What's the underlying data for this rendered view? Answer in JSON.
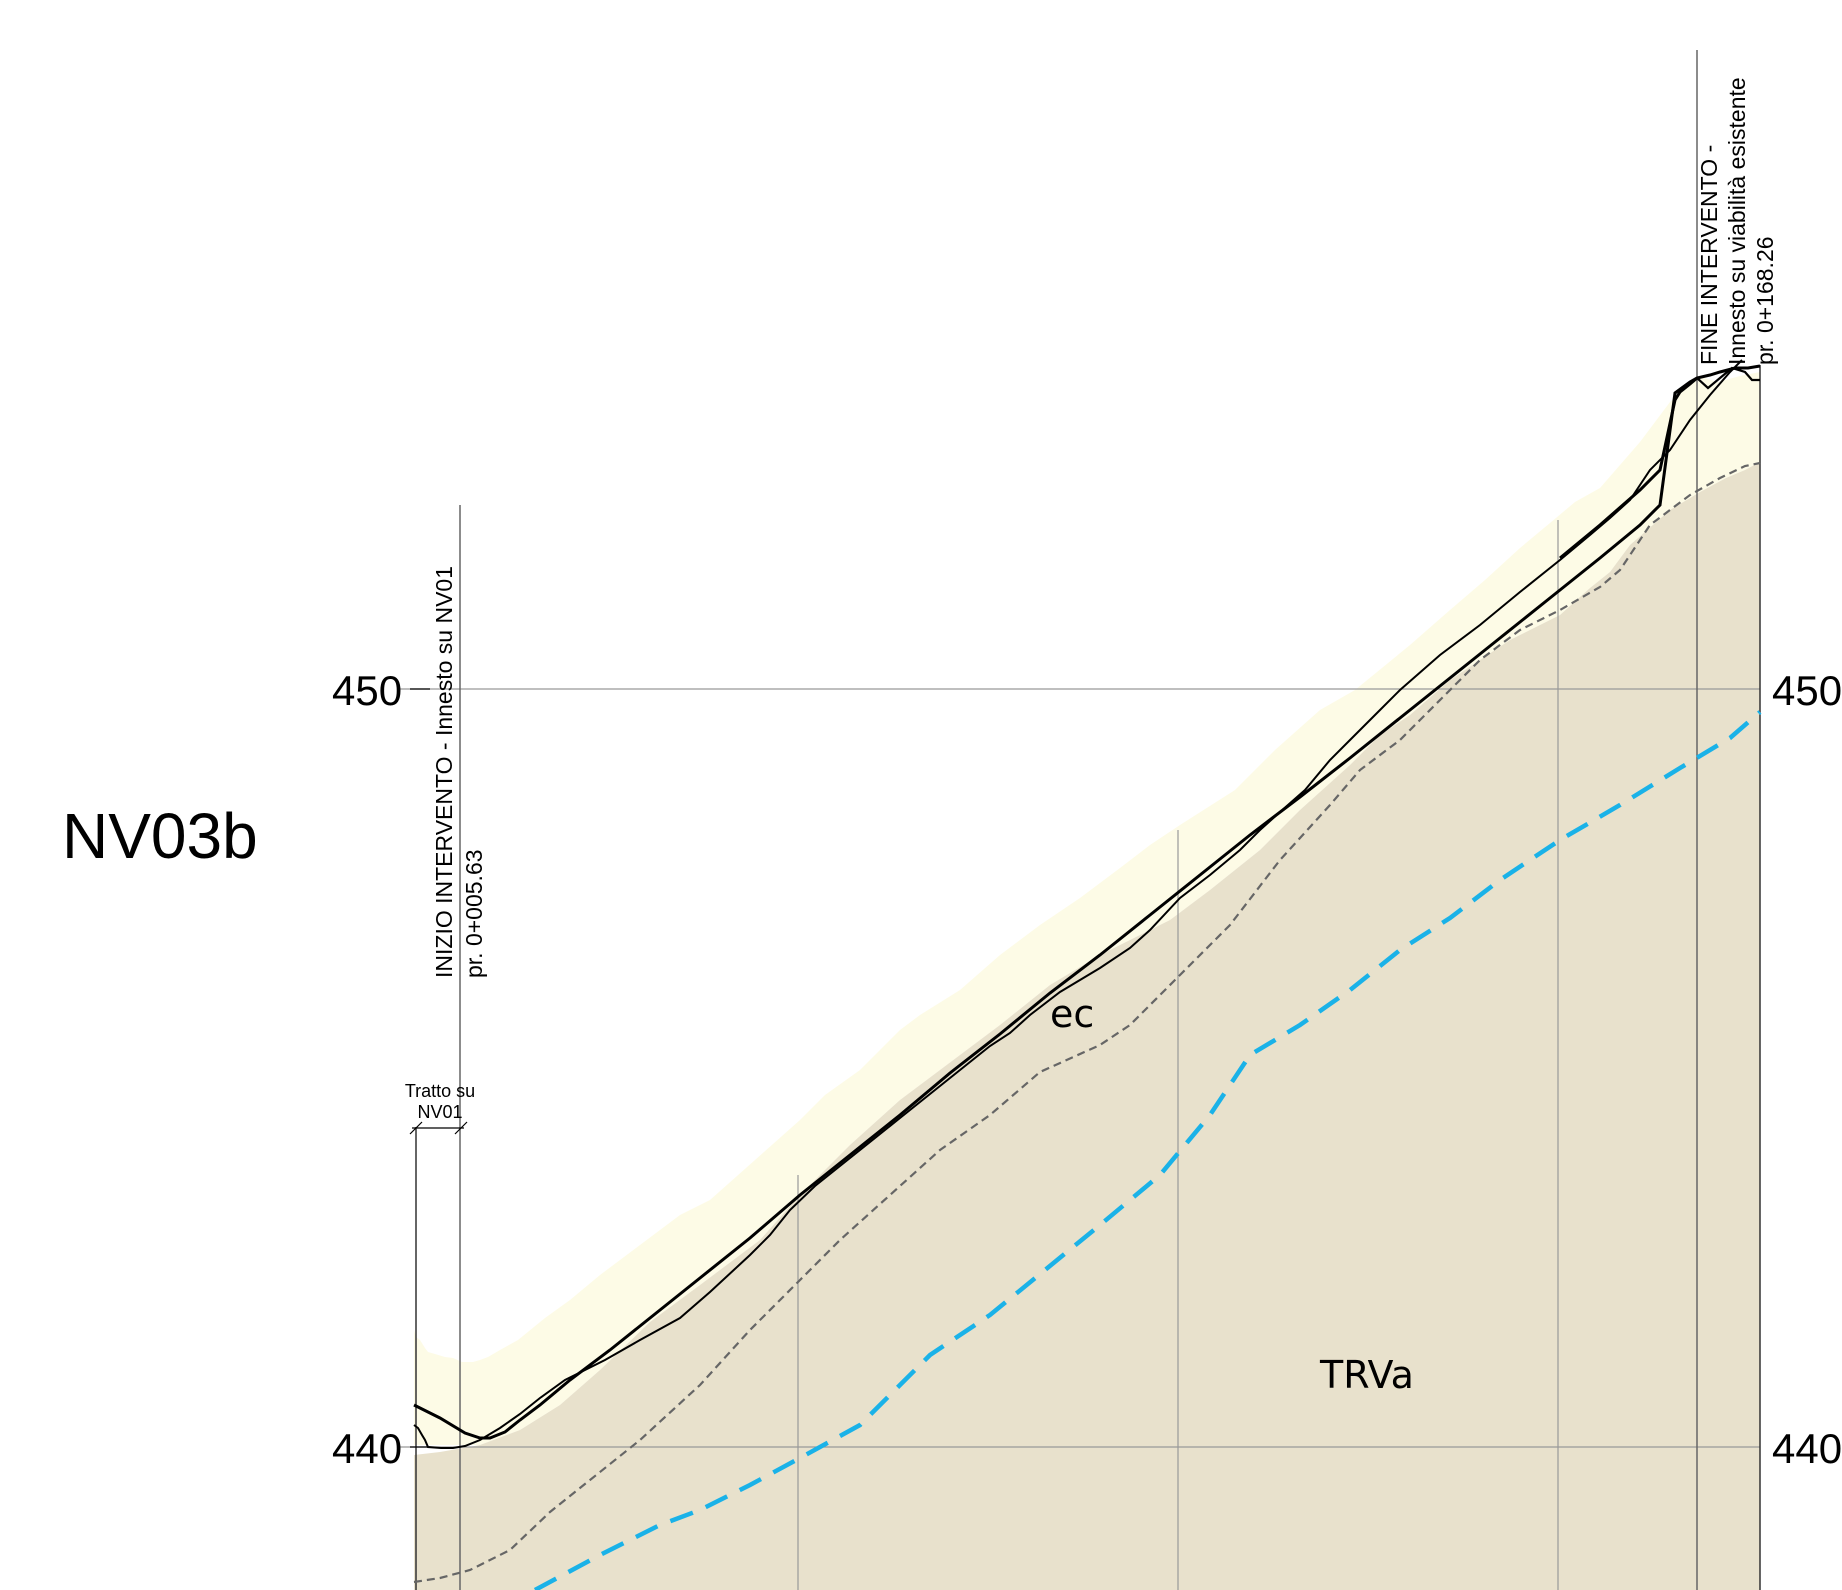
{
  "profile_name": "NV03b",
  "elevation_labels": {
    "upper": "450",
    "lower": "440"
  },
  "start_marker": {
    "line1": "INIZIO INTERVENTO - Innesto su NV01",
    "line2": "pr. 0+005.63"
  },
  "end_marker": {
    "line1": "FINE INTERVENTO -",
    "line2": "Innesto su viabilità esistente",
    "line3": "pr. 0+168.26"
  },
  "segment_label": {
    "line1": "Tratto su",
    "line2": "NV01"
  },
  "geology_units": {
    "upper": "ec",
    "lower": "TRVa"
  },
  "colors": {
    "ec_fill": "#fdfbe6",
    "trva_fill": "#e8e1cc",
    "groundwater": "#1ab2e8",
    "grid": "#999999",
    "profile_line": "#000000",
    "boundary_dashed": "#666666"
  }
}
